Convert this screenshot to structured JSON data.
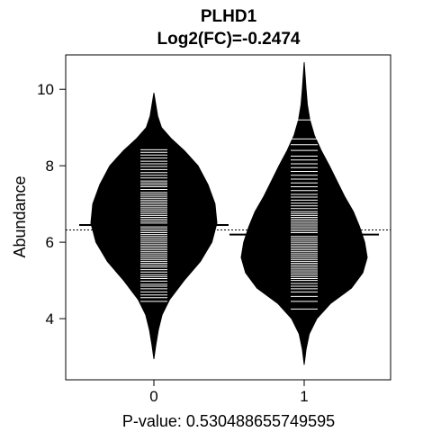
{
  "chart_data": {
    "type": "beanplot",
    "title": "PLHD1",
    "subtitle": "Log2(FC)=-0.2474",
    "xlabel": "P-value: 0.530488655749595",
    "ylabel": "Abundance",
    "ylim": [
      2.4,
      10.9
    ],
    "yticks": [
      4,
      6,
      8,
      10
    ],
    "categories": [
      "0",
      "1"
    ],
    "overall_mean": 6.32,
    "grid": false,
    "colors": {
      "bean": "#000000",
      "lines": "#ffffff",
      "background": "#ffffff"
    },
    "beans": [
      {
        "category": "0",
        "mean": 6.45,
        "density": [
          [
            2.95,
            0.0
          ],
          [
            3.3,
            0.03
          ],
          [
            3.7,
            0.07
          ],
          [
            4.1,
            0.13
          ],
          [
            4.5,
            0.25
          ],
          [
            5.0,
            0.48
          ],
          [
            5.5,
            0.74
          ],
          [
            6.0,
            0.92
          ],
          [
            6.5,
            1.0
          ],
          [
            7.0,
            0.97
          ],
          [
            7.5,
            0.86
          ],
          [
            8.0,
            0.7
          ],
          [
            8.4,
            0.48
          ],
          [
            8.7,
            0.28
          ],
          [
            9.0,
            0.12
          ],
          [
            9.3,
            0.06
          ],
          [
            9.6,
            0.03
          ],
          [
            9.9,
            0.0
          ]
        ],
        "values": [
          4.45,
          4.55,
          4.62,
          4.7,
          4.78,
          4.85,
          4.9,
          4.98,
          5.05,
          5.1,
          5.15,
          5.22,
          5.28,
          5.35,
          5.4,
          5.45,
          5.5,
          5.55,
          5.6,
          5.65,
          5.7,
          5.75,
          5.8,
          5.85,
          5.9,
          5.95,
          6.0,
          6.05,
          6.1,
          6.15,
          6.2,
          6.25,
          6.3,
          6.35,
          6.4,
          6.45,
          6.5,
          6.55,
          6.6,
          6.65,
          6.7,
          6.75,
          6.8,
          6.85,
          6.9,
          6.95,
          7.0,
          7.05,
          7.1,
          7.15,
          7.2,
          7.25,
          7.3,
          7.38,
          7.45,
          7.5,
          7.55,
          7.6,
          7.68,
          7.75,
          7.82,
          7.9,
          7.98,
          8.05,
          8.12,
          8.2,
          8.28,
          8.35,
          8.42
        ]
      },
      {
        "category": "1",
        "mean": 6.2,
        "density": [
          [
            2.8,
            0.0
          ],
          [
            3.2,
            0.03
          ],
          [
            3.6,
            0.08
          ],
          [
            4.0,
            0.2
          ],
          [
            4.4,
            0.42
          ],
          [
            4.8,
            0.75
          ],
          [
            5.2,
            0.93
          ],
          [
            5.6,
            1.0
          ],
          [
            6.0,
            0.96
          ],
          [
            6.4,
            0.88
          ],
          [
            6.8,
            0.78
          ],
          [
            7.2,
            0.64
          ],
          [
            7.6,
            0.52
          ],
          [
            8.0,
            0.4
          ],
          [
            8.4,
            0.27
          ],
          [
            8.8,
            0.16
          ],
          [
            9.2,
            0.09
          ],
          [
            9.6,
            0.05
          ],
          [
            10.0,
            0.03
          ],
          [
            10.7,
            0.0
          ]
        ],
        "values": [
          4.25,
          4.45,
          4.58,
          4.7,
          4.78,
          4.85,
          4.92,
          5.0,
          5.05,
          5.1,
          5.15,
          5.2,
          5.25,
          5.3,
          5.35,
          5.4,
          5.45,
          5.5,
          5.55,
          5.6,
          5.65,
          5.7,
          5.75,
          5.8,
          5.85,
          5.9,
          5.95,
          6.0,
          6.05,
          6.1,
          6.15,
          6.2,
          6.25,
          6.3,
          6.35,
          6.4,
          6.45,
          6.5,
          6.55,
          6.6,
          6.65,
          6.7,
          6.75,
          6.8,
          6.88,
          6.95,
          7.02,
          7.1,
          7.18,
          7.25,
          7.35,
          7.45,
          7.55,
          7.65,
          7.75,
          7.85,
          7.95,
          8.05,
          8.15,
          8.25,
          8.4,
          8.55,
          8.7,
          9.2
        ]
      }
    ]
  }
}
